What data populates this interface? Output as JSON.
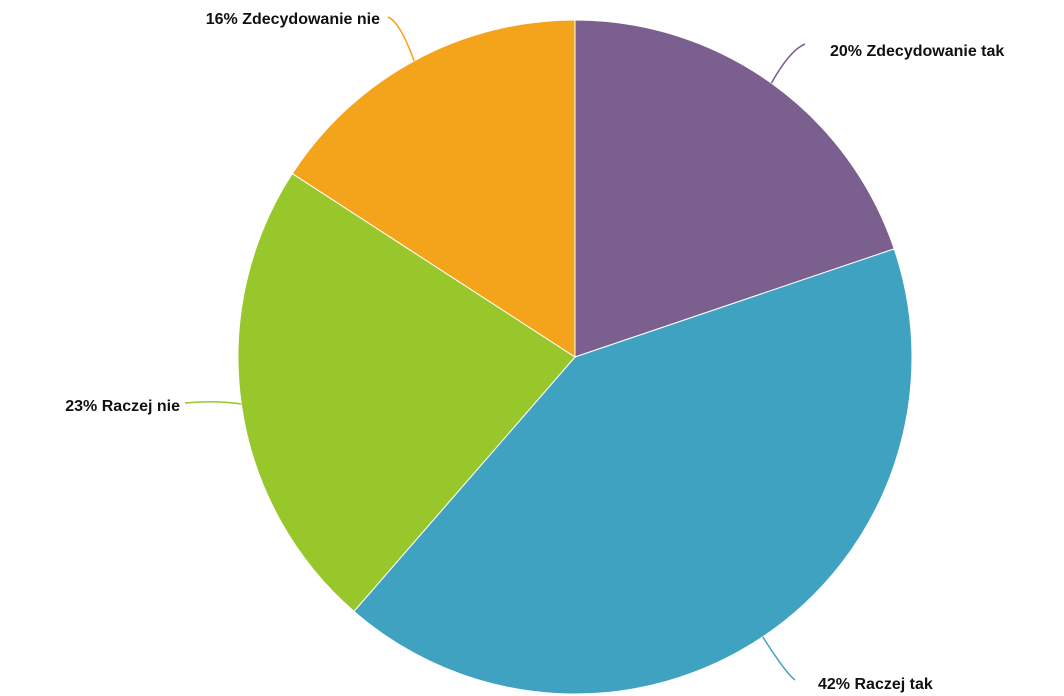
{
  "chart_data": {
    "type": "pie",
    "categories": [
      "Zdecydowanie tak",
      "Raczej tak",
      "Raczej nie",
      "Zdecydowanie nie"
    ],
    "values": [
      20,
      42,
      23,
      16
    ],
    "value_labels": [
      "20%",
      "42%",
      "23%",
      "16%"
    ],
    "colors": [
      "#7b5f8f",
      "#3fa2c1",
      "#97c72a",
      "#f4a41b"
    ]
  }
}
